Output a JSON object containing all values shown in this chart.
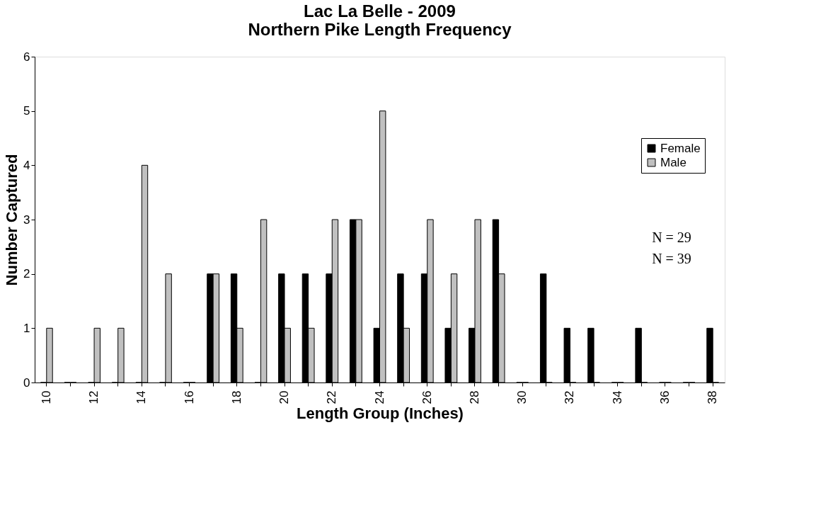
{
  "chart_data": {
    "type": "bar",
    "title": "Lac La Belle - 2009\nNorthern Pike Length Frequency",
    "xlabel": "Length Group (Inches)",
    "ylabel": "Number Captured",
    "categories": [
      "10",
      null,
      "12",
      null,
      "14",
      null,
      "16",
      null,
      "18",
      null,
      "20",
      null,
      "22",
      null,
      "24",
      null,
      "26",
      null,
      "28",
      null,
      "30",
      null,
      "32",
      null,
      "34",
      null,
      "36",
      null,
      "38"
    ],
    "series": [
      {
        "name": "Female",
        "color": "#000000",
        "values": [
          0,
          0,
          0,
          0,
          0,
          0,
          0,
          2,
          2,
          0,
          2,
          2,
          2,
          3,
          1,
          2,
          2,
          1,
          1,
          3,
          0,
          2,
          1,
          1,
          0,
          1,
          0,
          0,
          1
        ]
      },
      {
        "name": "Male",
        "color": "#c0c0c0",
        "values": [
          1,
          0,
          1,
          1,
          4,
          2,
          0,
          2,
          1,
          3,
          1,
          1,
          3,
          3,
          5,
          1,
          3,
          2,
          3,
          2,
          0,
          0,
          0,
          0,
          0,
          0,
          0,
          0,
          0
        ]
      }
    ],
    "ylim": [
      0,
      6
    ],
    "yticks": [
      0,
      1,
      2,
      3,
      4,
      5,
      6
    ],
    "grid": false,
    "legend": "right",
    "annotations": [
      "N = 29",
      "N = 39"
    ]
  }
}
